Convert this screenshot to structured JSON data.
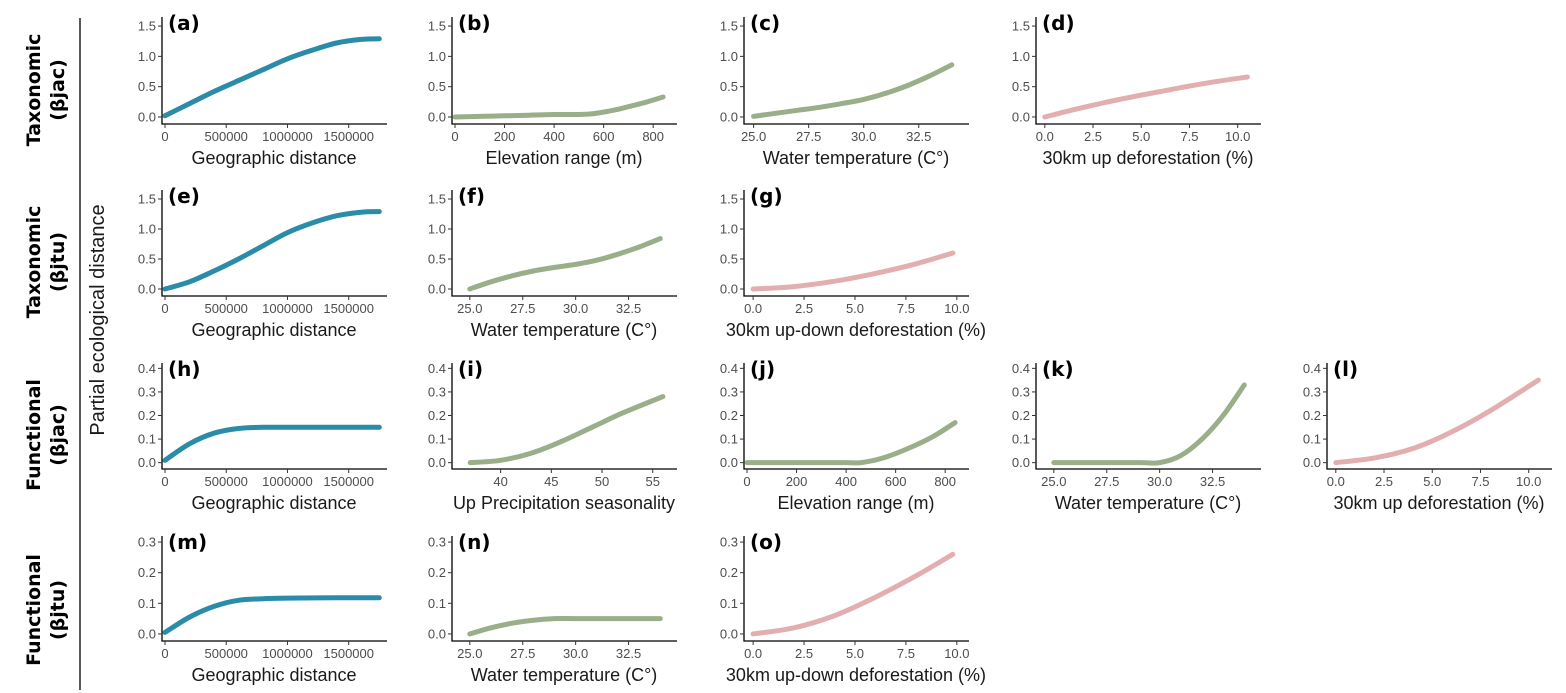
{
  "row_labels": [
    {
      "line1": "Taxonomic",
      "line2": "(βjac)"
    },
    {
      "line1": "Taxonomic",
      "line2": "(βjtu)"
    },
    {
      "line1": "Functional",
      "line2": "(βjac)"
    },
    {
      "line1": "Functional",
      "line2": "(βjtu)"
    }
  ],
  "y_axis_label": "Partial ecological distance",
  "colors": {
    "geographic": "#2a8ca8",
    "environment": "#9aae8a",
    "deforestation": "#e3aeb0"
  },
  "chart_data": [
    {
      "type": "line",
      "panel": "(a)",
      "row": 0,
      "col": 0,
      "xlabel": "Geographic distance",
      "xlim": [
        0,
        1780000
      ],
      "xticks": [
        0,
        500000,
        1000000,
        1500000
      ],
      "xticklabels": [
        "0",
        "500000",
        "1000000",
        "1500000"
      ],
      "ylim": [
        -0.05,
        1.6
      ],
      "yticks": [
        0,
        0.5,
        1,
        1.5
      ],
      "yticklabels": [
        "0.0",
        "0.5",
        "1.0",
        "1.5"
      ],
      "color_key": "geographic",
      "x": [
        0,
        200000,
        400000,
        600000,
        800000,
        1000000,
        1200000,
        1400000,
        1600000,
        1750000
      ],
      "y": [
        0.02,
        0.22,
        0.42,
        0.6,
        0.78,
        0.96,
        1.1,
        1.22,
        1.28,
        1.29
      ]
    },
    {
      "type": "line",
      "panel": "(b)",
      "row": 0,
      "col": 1,
      "xlabel": "Elevation range (m)",
      "xlim": [
        0,
        880
      ],
      "xticks": [
        0,
        200,
        400,
        600,
        800
      ],
      "xticklabels": [
        "0",
        "200",
        "400",
        "600",
        "800"
      ],
      "ylim": [
        -0.05,
        1.6
      ],
      "yticks": [
        0,
        0.5,
        1,
        1.5
      ],
      "yticklabels": [
        "0.0",
        "0.5",
        "1.0",
        "1.5"
      ],
      "color_key": "environment",
      "x": [
        0,
        100,
        200,
        300,
        400,
        500,
        550,
        600,
        650,
        700,
        750,
        800,
        840
      ],
      "y": [
        0.0,
        0.01,
        0.02,
        0.03,
        0.04,
        0.04,
        0.05,
        0.08,
        0.12,
        0.17,
        0.22,
        0.28,
        0.33
      ]
    },
    {
      "type": "line",
      "panel": "(c)",
      "row": 0,
      "col": 2,
      "xlabel": "Water temperature (C°)",
      "xlim": [
        24.7,
        34.6
      ],
      "xticks": [
        25,
        27.5,
        30,
        32.5
      ],
      "xticklabels": [
        "25.0",
        "27.5",
        "30.0",
        "32.5"
      ],
      "ylim": [
        -0.05,
        1.6
      ],
      "yticks": [
        0,
        0.5,
        1,
        1.5
      ],
      "yticklabels": [
        "0.0",
        "0.5",
        "1.0",
        "1.5"
      ],
      "color_key": "environment",
      "x": [
        25,
        26,
        27,
        28,
        29,
        30,
        31,
        32,
        33,
        34
      ],
      "y": [
        0.01,
        0.06,
        0.11,
        0.16,
        0.22,
        0.29,
        0.39,
        0.52,
        0.68,
        0.86
      ]
    },
    {
      "type": "line",
      "panel": "(d)",
      "row": 0,
      "col": 3,
      "xlabel": "30km up deforestation (%)",
      "xlim": [
        -0.3,
        11
      ],
      "xticks": [
        0,
        2.5,
        5,
        7.5,
        10
      ],
      "xticklabels": [
        "0.0",
        "2.5",
        "5.0",
        "7.5",
        "10.0"
      ],
      "ylim": [
        -0.05,
        1.6
      ],
      "yticks": [
        0,
        0.5,
        1,
        1.5
      ],
      "yticklabels": [
        "0.0",
        "0.5",
        "1.0",
        "1.5"
      ],
      "color_key": "deforestation",
      "x": [
        0,
        1.5,
        3,
        4.5,
        6,
        7.5,
        9,
        10.5
      ],
      "y": [
        0.0,
        0.12,
        0.23,
        0.33,
        0.42,
        0.51,
        0.59,
        0.66
      ]
    },
    {
      "type": "line",
      "panel": "(e)",
      "row": 1,
      "col": 0,
      "xlabel": "Geographic distance",
      "xlim": [
        0,
        1780000
      ],
      "xticks": [
        0,
        500000,
        1000000,
        1500000
      ],
      "xticklabels": [
        "0",
        "500000",
        "1000000",
        "1500000"
      ],
      "ylim": [
        -0.05,
        1.6
      ],
      "yticks": [
        0,
        0.5,
        1,
        1.5
      ],
      "yticklabels": [
        "0.0",
        "0.5",
        "1.0",
        "1.5"
      ],
      "color_key": "geographic",
      "x": [
        0,
        200000,
        400000,
        600000,
        800000,
        1000000,
        1200000,
        1400000,
        1600000,
        1750000
      ],
      "y": [
        0.0,
        0.12,
        0.3,
        0.5,
        0.72,
        0.94,
        1.1,
        1.22,
        1.28,
        1.29
      ]
    },
    {
      "type": "line",
      "panel": "(f)",
      "row": 1,
      "col": 1,
      "xlabel": "Water temperature (C°)",
      "xlim": [
        24.3,
        34.6
      ],
      "xticks": [
        25,
        27.5,
        30,
        32.5
      ],
      "xticklabels": [
        "25.0",
        "27.5",
        "30.0",
        "32.5"
      ],
      "ylim": [
        -0.05,
        1.6
      ],
      "yticks": [
        0,
        0.5,
        1,
        1.5
      ],
      "yticklabels": [
        "0.0",
        "0.5",
        "1.0",
        "1.5"
      ],
      "color_key": "environment",
      "x": [
        25,
        26,
        27,
        28,
        29,
        30,
        31,
        32,
        33,
        34
      ],
      "y": [
        0.0,
        0.12,
        0.22,
        0.3,
        0.36,
        0.41,
        0.48,
        0.58,
        0.7,
        0.84
      ]
    },
    {
      "type": "line",
      "panel": "(g)",
      "row": 1,
      "col": 2,
      "xlabel": "30km up-down deforestation (%)",
      "xlim": [
        -0.3,
        10.4
      ],
      "xticks": [
        0,
        2.5,
        5,
        7.5,
        10
      ],
      "xticklabels": [
        "0.0",
        "2.5",
        "5.0",
        "7.5",
        "10.0"
      ],
      "ylim": [
        -0.05,
        1.6
      ],
      "yticks": [
        0,
        0.5,
        1,
        1.5
      ],
      "yticklabels": [
        "0.0",
        "0.5",
        "1.0",
        "1.5"
      ],
      "color_key": "deforestation",
      "x": [
        0,
        2,
        4,
        6,
        8,
        9.8
      ],
      "y": [
        0.0,
        0.04,
        0.13,
        0.26,
        0.42,
        0.6
      ]
    },
    {
      "type": "line",
      "panel": "(h)",
      "row": 2,
      "col": 0,
      "xlabel": "Geographic distance",
      "xlim": [
        0,
        1780000
      ],
      "xticks": [
        0,
        500000,
        1000000,
        1500000
      ],
      "xticklabels": [
        "0",
        "500000",
        "1000000",
        "1500000"
      ],
      "ylim": [
        -0.01,
        0.41
      ],
      "yticks": [
        0,
        0.1,
        0.2,
        0.3,
        0.4
      ],
      "yticklabels": [
        "0.0",
        "0.1",
        "0.2",
        "0.3",
        "0.4"
      ],
      "color_key": "geographic",
      "x": [
        0,
        200000,
        400000,
        600000,
        800000,
        1000000,
        1400000,
        1750000
      ],
      "y": [
        0.01,
        0.08,
        0.125,
        0.145,
        0.15,
        0.15,
        0.15,
        0.15
      ]
    },
    {
      "type": "line",
      "panel": "(i)",
      "row": 2,
      "col": 1,
      "xlabel": "Up Precipitation seasonality",
      "xlim": [
        35.5,
        57
      ],
      "xticks": [
        40,
        45,
        50,
        55
      ],
      "xticklabels": [
        "40",
        "45",
        "50",
        "55"
      ],
      "ylim": [
        -0.01,
        0.41
      ],
      "yticks": [
        0,
        0.1,
        0.2,
        0.3,
        0.4
      ],
      "yticklabels": [
        "0.0",
        "0.1",
        "0.2",
        "0.3",
        "0.4"
      ],
      "color_key": "environment",
      "x": [
        37,
        40,
        43,
        46,
        49,
        52,
        56
      ],
      "y": [
        0.0,
        0.01,
        0.04,
        0.09,
        0.15,
        0.21,
        0.28
      ]
    },
    {
      "type": "line",
      "panel": "(j)",
      "row": 2,
      "col": 2,
      "xlabel": "Elevation range (m)",
      "xlim": [
        0,
        880
      ],
      "xticks": [
        0,
        200,
        400,
        600,
        800
      ],
      "xticklabels": [
        "0",
        "200",
        "400",
        "600",
        "800"
      ],
      "ylim": [
        -0.01,
        0.41
      ],
      "yticks": [
        0,
        0.1,
        0.2,
        0.3,
        0.4
      ],
      "yticklabels": [
        "0.0",
        "0.1",
        "0.2",
        "0.3",
        "0.4"
      ],
      "color_key": "environment",
      "x": [
        0,
        200,
        400,
        460,
        550,
        650,
        750,
        840
      ],
      "y": [
        0.0,
        0.0,
        0.0,
        0.0,
        0.02,
        0.06,
        0.11,
        0.17
      ]
    },
    {
      "type": "line",
      "panel": "(k)",
      "row": 2,
      "col": 3,
      "xlabel": "Water temperature (C°)",
      "xlim": [
        24.3,
        34.6
      ],
      "xticks": [
        25,
        27.5,
        30,
        32.5
      ],
      "xticklabels": [
        "25.0",
        "27.5",
        "30.0",
        "32.5"
      ],
      "ylim": [
        -0.01,
        0.41
      ],
      "yticks": [
        0,
        0.1,
        0.2,
        0.3,
        0.4
      ],
      "yticklabels": [
        "0.0",
        "0.1",
        "0.2",
        "0.3",
        "0.4"
      ],
      "color_key": "environment",
      "x": [
        25,
        27,
        29,
        30,
        31,
        32,
        33,
        34
      ],
      "y": [
        0.0,
        0.0,
        0.0,
        0.0,
        0.03,
        0.1,
        0.2,
        0.33
      ]
    },
    {
      "type": "line",
      "panel": "(l)",
      "row": 2,
      "col": 4,
      "xlabel": "30km up deforestation (%)",
      "xlim": [
        -0.3,
        11
      ],
      "xticks": [
        0,
        2.5,
        5,
        7.5,
        10
      ],
      "xticklabels": [
        "0.0",
        "2.5",
        "5.0",
        "7.5",
        "10.0"
      ],
      "ylim": [
        -0.01,
        0.41
      ],
      "yticks": [
        0,
        0.1,
        0.2,
        0.3,
        0.4
      ],
      "yticklabels": [
        "0.0",
        "0.1",
        "0.2",
        "0.3",
        "0.4"
      ],
      "color_key": "deforestation",
      "x": [
        0,
        2,
        4,
        6,
        8,
        10.5
      ],
      "y": [
        0.0,
        0.02,
        0.06,
        0.13,
        0.22,
        0.35
      ]
    },
    {
      "type": "line",
      "panel": "(m)",
      "row": 3,
      "col": 0,
      "xlabel": "Geographic distance",
      "xlim": [
        0,
        1780000
      ],
      "xticks": [
        0,
        500000,
        1000000,
        1500000
      ],
      "xticklabels": [
        "0",
        "500000",
        "1000000",
        "1500000"
      ],
      "ylim": [
        -0.01,
        0.31
      ],
      "yticks": [
        0,
        0.1,
        0.2,
        0.3
      ],
      "yticklabels": [
        "0.0",
        "0.1",
        "0.2",
        "0.3"
      ],
      "color_key": "geographic",
      "x": [
        0,
        200000,
        400000,
        600000,
        800000,
        1000000,
        1400000,
        1750000
      ],
      "y": [
        0.005,
        0.055,
        0.09,
        0.11,
        0.115,
        0.117,
        0.118,
        0.118
      ]
    },
    {
      "type": "line",
      "panel": "(n)",
      "row": 3,
      "col": 1,
      "xlabel": "Water temperature (C°)",
      "xlim": [
        24.3,
        34.6
      ],
      "xticks": [
        25,
        27.5,
        30,
        32.5
      ],
      "xticklabels": [
        "25.0",
        "27.5",
        "30.0",
        "32.5"
      ],
      "ylim": [
        -0.01,
        0.31
      ],
      "yticks": [
        0,
        0.1,
        0.2,
        0.3
      ],
      "yticklabels": [
        "0.0",
        "0.1",
        "0.2",
        "0.3"
      ],
      "color_key": "environment",
      "x": [
        25,
        26,
        27,
        28,
        29,
        30,
        32,
        34
      ],
      "y": [
        0.0,
        0.02,
        0.035,
        0.045,
        0.05,
        0.05,
        0.05,
        0.05
      ]
    },
    {
      "type": "line",
      "panel": "(o)",
      "row": 3,
      "col": 2,
      "xlabel": "30km up-down deforestation (%)",
      "xlim": [
        -0.3,
        10.4
      ],
      "xticks": [
        0,
        2.5,
        5,
        7.5,
        10
      ],
      "xticklabels": [
        "0.0",
        "2.5",
        "5.0",
        "7.5",
        "10.0"
      ],
      "ylim": [
        -0.01,
        0.31
      ],
      "yticks": [
        0,
        0.1,
        0.2,
        0.3
      ],
      "yticklabels": [
        "0.0",
        "0.1",
        "0.2",
        "0.3"
      ],
      "color_key": "deforestation",
      "x": [
        0,
        2,
        4,
        6,
        8,
        9.8
      ],
      "y": [
        0.0,
        0.02,
        0.06,
        0.12,
        0.19,
        0.26
      ]
    }
  ]
}
